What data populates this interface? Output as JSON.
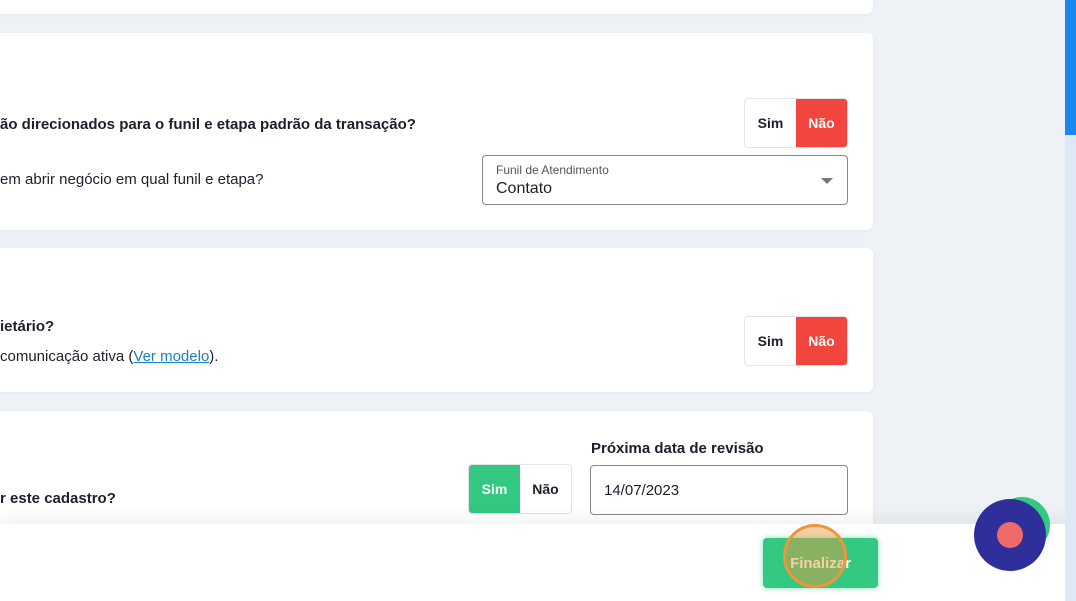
{
  "section1": {
    "question1": "ão direcionados para o funil e etapa padrão da transação?",
    "question1_toggle": {
      "yes": "Sim",
      "no": "Não",
      "selected": "Não"
    },
    "question2": "em abrir negócio em qual funil e etapa?",
    "funnel_select": {
      "label": "Funil de Atendimento",
      "value": "Contato"
    }
  },
  "section2": {
    "question": "ietário?",
    "note_prefix": "comunicação ativa (",
    "note_link": "Ver modelo",
    "note_suffix": ").",
    "toggle": {
      "yes": "Sim",
      "no": "Não",
      "selected": "Não"
    }
  },
  "section3": {
    "question": "r este cadastro?",
    "toggle": {
      "yes": "Sim",
      "no": "Não",
      "selected": "Sim"
    },
    "review_date_label": "Próxima data de revisão",
    "review_date_value": "14/07/2023"
  },
  "footer": {
    "finalize_label": "Finalizar"
  },
  "colors": {
    "no_active": "#f2453d",
    "yes_active": "#34c983",
    "chat_widget": "#2e2f9a"
  }
}
